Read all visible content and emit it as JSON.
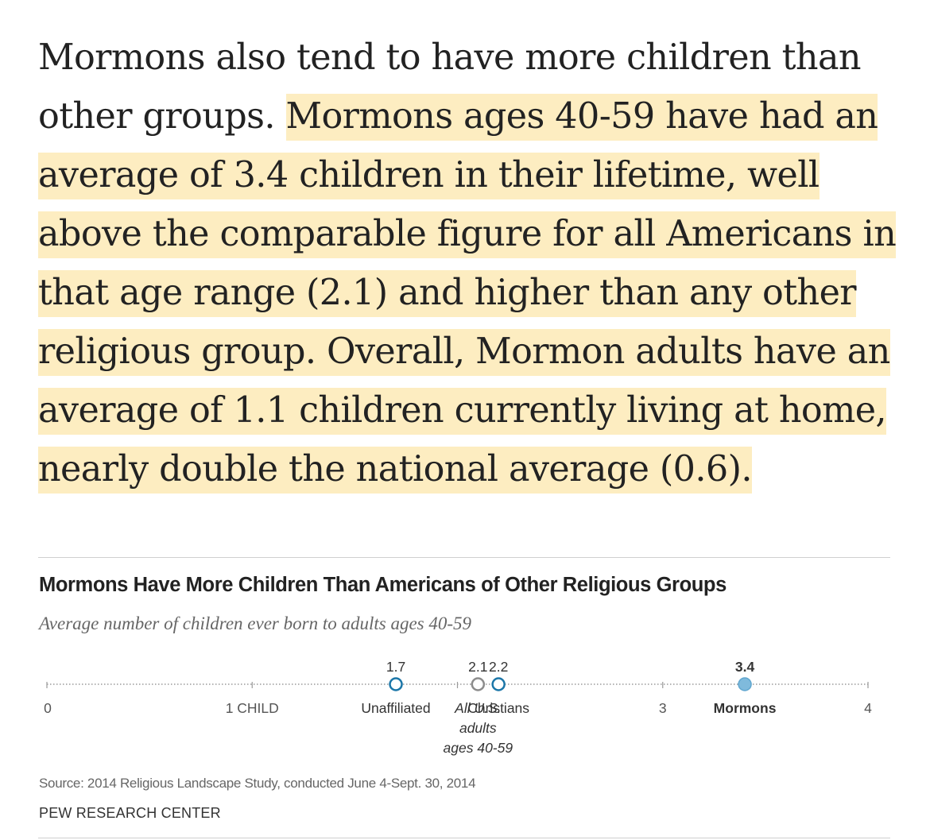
{
  "article": {
    "plain": "Mormons also tend to have more children than other groups. ",
    "highlighted": "Mormons ages 40-59 have had an average of 3.4 children in their lifetime, well above the comparable figure for all Americans in that age range (2.1) and higher than any other religious group. Overall, Mormon adults have an average of 1.1 children currently living at home, nearly double the national average (0.6)."
  },
  "chart": {
    "title": "Mormons Have More Children Than Americans of Other Religious Groups",
    "subtitle": "Average number of children ever born to adults ages 40-59",
    "source": "Source: 2014 Religious Landscape Study, conducted June 4-Sept. 30, 2014",
    "brand": "PEW RESEARCH CENTER"
  },
  "chart_data": {
    "type": "scatter",
    "title": "Mormons Have More Children Than Americans of Other Religious Groups",
    "subtitle": "Average number of children ever born to adults ages 40-59",
    "xlim": [
      0,
      4
    ],
    "axis_ticks": [
      {
        "value": 0,
        "label": "0"
      },
      {
        "value": 1,
        "label": "1 CHILD"
      },
      {
        "value": 3,
        "label": "3"
      },
      {
        "value": 4,
        "label": "4"
      }
    ],
    "points": [
      {
        "name": "Unaffiliated",
        "value": 1.7,
        "value_label": "1.7",
        "label_lines": [
          "Unaffiliated"
        ],
        "style": "open",
        "color": "#1b76a8"
      },
      {
        "name": "All U.S. adults ages 40-59",
        "value": 2.1,
        "value_label": "2.1",
        "label_lines": [
          "All U.S.",
          "adults",
          "ages 40-59"
        ],
        "style": "open",
        "color": "#8c8c8c"
      },
      {
        "name": "Christians",
        "value": 2.2,
        "value_label": "2.2",
        "label_lines": [
          "Christians"
        ],
        "style": "open",
        "color": "#1b76a8"
      },
      {
        "name": "Mormons",
        "value": 3.4,
        "value_label": "3.4",
        "label_lines": [
          "Mormons"
        ],
        "style": "filled",
        "color": "#7fbadc"
      }
    ],
    "colors": {
      "axis": "#9a9a9a",
      "accent": "#1b76a8",
      "fill": "#7fbadc",
      "neutral": "#8c8c8c"
    },
    "grid": false,
    "legend": "none"
  }
}
